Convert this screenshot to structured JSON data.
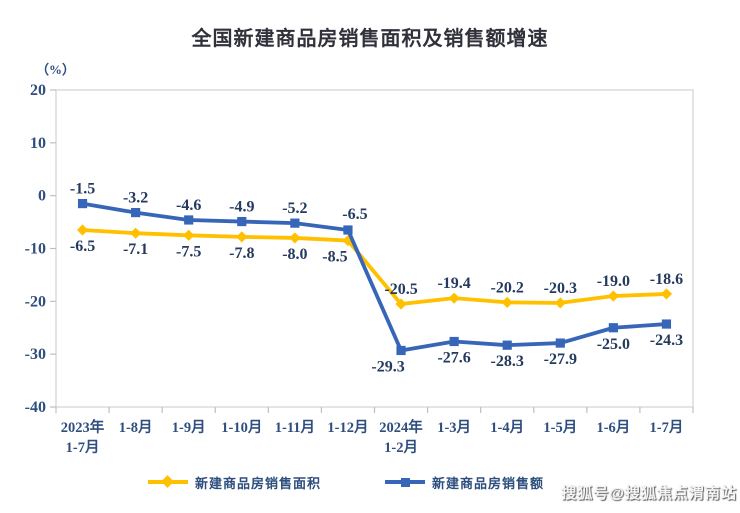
{
  "page": {
    "watermark": "搜狐号@搜狐焦点渭南站"
  },
  "chart_data": {
    "type": "line",
    "title": "全国新建商品房销售面积及销售额增速",
    "y_unit_label": "（%）",
    "ylim": [
      -40,
      20
    ],
    "y_ticks": [
      20,
      10,
      0,
      -10,
      -20,
      -30,
      -40
    ],
    "grid": false,
    "plot_border_color": "#d9d9d9",
    "tick_color": "#bfbfbf",
    "axis_label_color": "#2e4e7e",
    "data_label_color": "#253a5e",
    "legend_position": "bottom",
    "categories": [
      [
        "2023年",
        "1-7月"
      ],
      [
        "1-8月"
      ],
      [
        "1-9月"
      ],
      [
        "1-10月"
      ],
      [
        "1-11月"
      ],
      [
        "1-12月"
      ],
      [
        "2024年",
        "1-2月"
      ],
      [
        "1-3月"
      ],
      [
        "1-4月"
      ],
      [
        "1-5月"
      ],
      [
        "1-6月"
      ],
      [
        "1-7月"
      ]
    ],
    "series": [
      {
        "name": "新建商品房销售面积",
        "color": "#ffc000",
        "marker": "diamond",
        "values": [
          -6.5,
          -7.1,
          -7.5,
          -7.8,
          -8.0,
          -8.5,
          -20.5,
          -19.4,
          -20.2,
          -20.3,
          -19.0,
          -18.6
        ],
        "labels": [
          "-6.5",
          "-7.1",
          "-7.5",
          "-7.8",
          "-8.0",
          "-8.5",
          "-20.5",
          "-19.4",
          "-20.2",
          "-20.3",
          "-19.0",
          "-18.6"
        ],
        "label_side": [
          "below",
          "below",
          "below",
          "below",
          "below",
          "below-left",
          "above",
          "above",
          "above",
          "above",
          "above",
          "above"
        ]
      },
      {
        "name": "新建商品房销售额",
        "color": "#3766b8",
        "marker": "square",
        "values": [
          -1.5,
          -3.2,
          -4.6,
          -4.9,
          -5.2,
          -6.5,
          -29.3,
          -27.6,
          -28.3,
          -27.9,
          -25.0,
          -24.3
        ],
        "labels": [
          "-1.5",
          "-3.2",
          "-4.6",
          "-4.9",
          "-5.2",
          "-6.5",
          "-29.3",
          "-27.6",
          "-28.3",
          "-27.9",
          "-25.0",
          "-24.3"
        ],
        "label_side": [
          "above",
          "above",
          "above",
          "above",
          "above",
          "above-right",
          "below-left",
          "below",
          "below",
          "below",
          "below",
          "below"
        ]
      }
    ]
  }
}
